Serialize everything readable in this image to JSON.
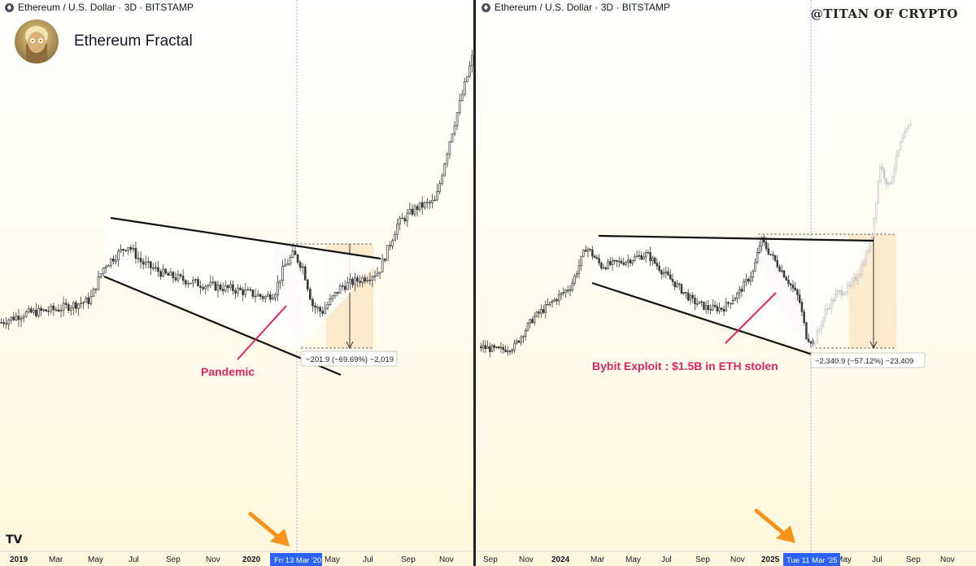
{
  "colors": {
    "up": "#3a3a3a",
    "down": "#3a3a3a",
    "faded": "#c4c4c4",
    "annotation": "#e0245e",
    "arrow": "#f7931a",
    "date_bg": "#2962ff",
    "box_fill": "#fbe6c8",
    "pink": "#f3b7c8"
  },
  "branding": {
    "logo": "TV",
    "watermark": "@TITAN OF CRYPTO",
    "avatar": "avatar-icon"
  },
  "left": {
    "symbol": "Ethereum / U.S. Dollar · 3D · BITSTAMP",
    "title": "Ethereum Fractal",
    "annotation": "Pandemic",
    "measure": "−201.9 (−69.69%) −2,019",
    "cursor_date": "Fri 13 Mar '20"
  },
  "right": {
    "symbol": "Ethereum / U.S. Dollar · 3D · BITSTAMP",
    "annotation": "Bybit Exploit : $1.5B in ETH stolen",
    "measure": "−2,340.9 (−57.12%) −23,409",
    "cursor_date": "Tue 11 Mar '25"
  },
  "chart_data": [
    {
      "type": "candlestick",
      "title": "Ethereum / U.S. Dollar · 3D · BITSTAMP",
      "x_ticks": [
        "2019",
        "Mar",
        "May",
        "Jul",
        "Sep",
        "Nov",
        "2020",
        "May",
        "Jul",
        "Sep",
        "Nov"
      ],
      "cursor": "Fri 13 Mar '20",
      "annotations": [
        "Pandemic",
        "−201.9 (−69.69%) −2,019"
      ],
      "price_path": [
        [
          0,
          0.18
        ],
        [
          0.05,
          0.24
        ],
        [
          0.12,
          0.27
        ],
        [
          0.19,
          0.33
        ],
        [
          0.22,
          0.56
        ],
        [
          0.27,
          0.7
        ],
        [
          0.3,
          0.58
        ],
        [
          0.35,
          0.5
        ],
        [
          0.42,
          0.44
        ],
        [
          0.5,
          0.4
        ],
        [
          0.56,
          0.35
        ],
        [
          0.58,
          0.38
        ],
        [
          0.6,
          0.55
        ],
        [
          0.62,
          0.64
        ],
        [
          0.64,
          0.55
        ],
        [
          0.66,
          0.3
        ],
        [
          0.68,
          0.25
        ],
        [
          0.72,
          0.42
        ],
        [
          0.77,
          0.48
        ],
        [
          0.8,
          0.52
        ],
        [
          0.84,
          0.84
        ],
        [
          0.88,
          0.95
        ],
        [
          0.92,
          0.99
        ],
        [
          0.95,
          1.4
        ],
        [
          1.0,
          1.98
        ]
      ]
    },
    {
      "type": "candlestick",
      "title": "Ethereum / U.S. Dollar · 3D · BITSTAMP",
      "x_ticks": [
        "Sep",
        "Nov",
        "2024",
        "Mar",
        "May",
        "Jul",
        "Sep",
        "Nov",
        "2025",
        "May",
        "Jul",
        "Sep",
        "Nov"
      ],
      "cursor": "Tue 11 Mar '25",
      "annotations": [
        "Bybit Exploit : $1.5B in ETH stolen",
        "−2,340.9 (−57.12%) −23,409"
      ],
      "price_path": [
        [
          0,
          0.09
        ],
        [
          0.05,
          0.06
        ],
        [
          0.09,
          0.09
        ],
        [
          0.14,
          0.32
        ],
        [
          0.24,
          0.58
        ],
        [
          0.28,
          0.9
        ],
        [
          0.32,
          0.74
        ],
        [
          0.38,
          0.78
        ],
        [
          0.44,
          0.84
        ],
        [
          0.48,
          0.7
        ],
        [
          0.52,
          0.58
        ],
        [
          0.56,
          0.46
        ],
        [
          0.6,
          0.4
        ],
        [
          0.64,
          0.4
        ],
        [
          0.68,
          0.52
        ],
        [
          0.72,
          0.7
        ],
        [
          0.74,
          0.96
        ],
        [
          0.76,
          0.86
        ],
        [
          0.8,
          0.68
        ],
        [
          0.84,
          0.48
        ],
        [
          0.86,
          0.17
        ],
        [
          0.88,
          0.12
        ]
      ],
      "projection_path": [
        [
          0.88,
          0.12
        ],
        [
          0.92,
          0.38
        ],
        [
          0.96,
          0.52
        ],
        [
          1.0,
          0.56
        ],
        [
          1.04,
          0.7
        ],
        [
          1.08,
          0.96
        ],
        [
          1.11,
          1.56
        ],
        [
          1.14,
          1.38
        ],
        [
          1.18,
          1.72
        ],
        [
          1.22,
          1.92
        ]
      ]
    }
  ]
}
